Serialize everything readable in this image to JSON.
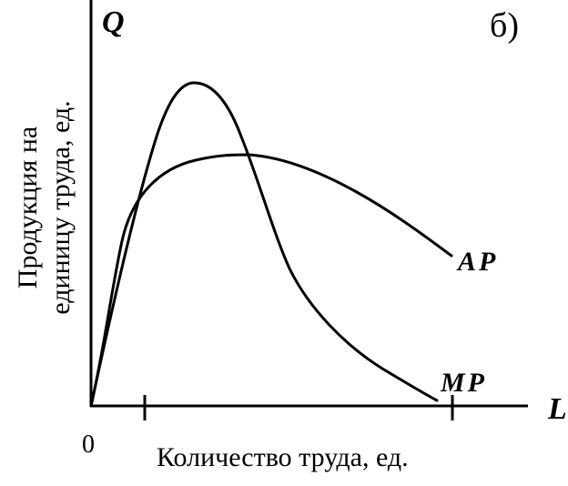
{
  "panel_label": "б)",
  "y_axis": {
    "symbol": "Q",
    "title_line1": "Продукция на",
    "title_line2": "единицу труда, ед."
  },
  "x_axis": {
    "symbol": "L",
    "title": "Количество труда, ед.",
    "origin": "0"
  },
  "curves": {
    "ap_label": "AP",
    "mp_label": "MP"
  }
}
